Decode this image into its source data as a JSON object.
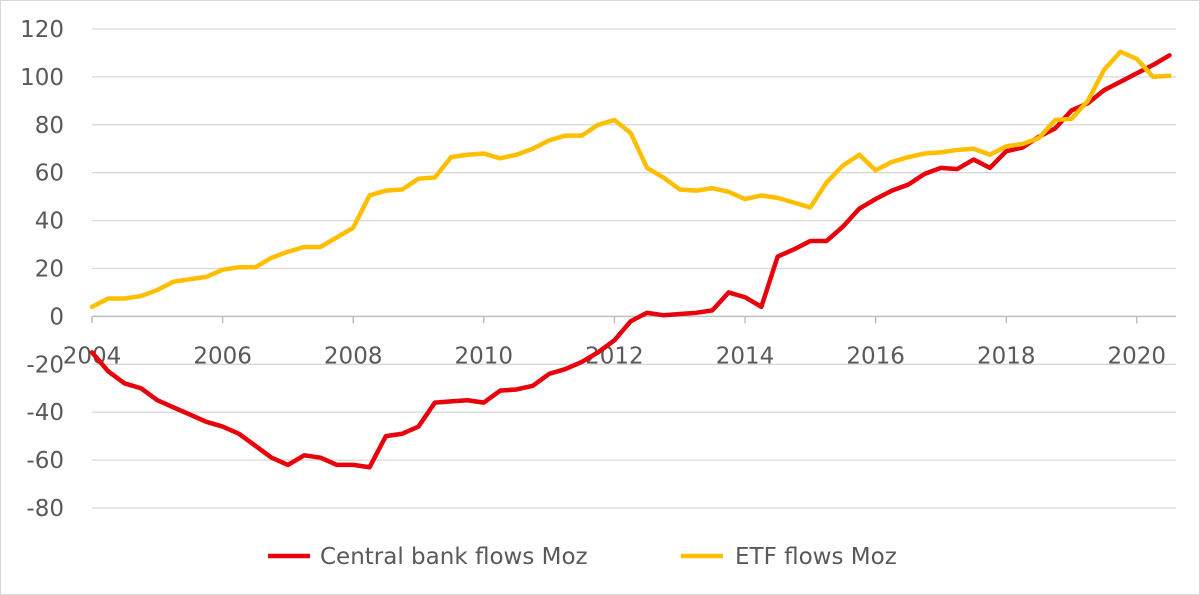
{
  "chart_data": {
    "type": "line",
    "title": "",
    "xlabel": "",
    "ylabel": "",
    "xlim": [
      2004,
      2020.6
    ],
    "ylim": [
      -80,
      120
    ],
    "y_ticks": [
      "-80",
      "-60",
      "-40",
      "-20",
      "0",
      "20",
      "40",
      "60",
      "80",
      "100",
      "120"
    ],
    "x_ticks": [
      "2004",
      "2006",
      "2008",
      "2010",
      "2012",
      "2014",
      "2016",
      "2018",
      "2020"
    ],
    "grid": "horizontal",
    "legend": "bottom",
    "series": [
      {
        "name": "Central bank flows Moz",
        "color": "#e8000b",
        "points": [
          [
            2004.0,
            -15
          ],
          [
            2004.25,
            -23
          ],
          [
            2004.5,
            -28
          ],
          [
            2004.75,
            -30
          ],
          [
            2005.0,
            -35
          ],
          [
            2005.25,
            -38
          ],
          [
            2005.5,
            -41
          ],
          [
            2005.75,
            -44
          ],
          [
            2006.0,
            -46
          ],
          [
            2006.25,
            -49
          ],
          [
            2006.5,
            -54
          ],
          [
            2006.75,
            -59
          ],
          [
            2007.0,
            -62
          ],
          [
            2007.25,
            -58
          ],
          [
            2007.5,
            -59
          ],
          [
            2007.75,
            -62
          ],
          [
            2008.0,
            -62
          ],
          [
            2008.25,
            -63
          ],
          [
            2008.5,
            -50
          ],
          [
            2008.75,
            -49
          ],
          [
            2009.0,
            -46
          ],
          [
            2009.25,
            -36
          ],
          [
            2009.5,
            -35.5
          ],
          [
            2009.75,
            -35
          ],
          [
            2010.0,
            -36
          ],
          [
            2010.25,
            -31
          ],
          [
            2010.5,
            -30.5
          ],
          [
            2010.75,
            -29
          ],
          [
            2011.0,
            -24
          ],
          [
            2011.25,
            -22
          ],
          [
            2011.5,
            -19
          ],
          [
            2011.75,
            -15
          ],
          [
            2012.0,
            -10
          ],
          [
            2012.25,
            -2
          ],
          [
            2012.5,
            1.5
          ],
          [
            2012.75,
            0.5
          ],
          [
            2013.0,
            1
          ],
          [
            2013.25,
            1.5
          ],
          [
            2013.5,
            2.5
          ],
          [
            2013.75,
            10
          ],
          [
            2014.0,
            8
          ],
          [
            2014.25,
            4
          ],
          [
            2014.5,
            25
          ],
          [
            2014.75,
            28
          ],
          [
            2015.0,
            31.5
          ],
          [
            2015.25,
            31.5
          ],
          [
            2015.5,
            37.5
          ],
          [
            2015.75,
            45
          ],
          [
            2016.0,
            49
          ],
          [
            2016.25,
            52.5
          ],
          [
            2016.5,
            55
          ],
          [
            2016.75,
            59.5
          ],
          [
            2017.0,
            62
          ],
          [
            2017.25,
            61.5
          ],
          [
            2017.5,
            65.5
          ],
          [
            2017.75,
            62
          ],
          [
            2018.0,
            69
          ],
          [
            2018.25,
            70.5
          ],
          [
            2018.5,
            75
          ],
          [
            2018.75,
            78.5
          ],
          [
            2019.0,
            86
          ],
          [
            2019.25,
            89
          ],
          [
            2019.5,
            94.5
          ],
          [
            2019.75,
            98
          ],
          [
            2020.0,
            101.5
          ],
          [
            2020.25,
            105
          ],
          [
            2020.5,
            109
          ]
        ]
      },
      {
        "name": "ETF flows Moz",
        "color": "#ffbf00",
        "points": [
          [
            2004.0,
            4
          ],
          [
            2004.25,
            7.5
          ],
          [
            2004.5,
            7.5
          ],
          [
            2004.75,
            8.5
          ],
          [
            2005.0,
            11
          ],
          [
            2005.25,
            14.5
          ],
          [
            2005.5,
            15.5
          ],
          [
            2005.75,
            16.5
          ],
          [
            2006.0,
            19.5
          ],
          [
            2006.25,
            20.5
          ],
          [
            2006.5,
            20.5
          ],
          [
            2006.75,
            24.5
          ],
          [
            2007.0,
            27
          ],
          [
            2007.25,
            29
          ],
          [
            2007.5,
            29
          ],
          [
            2007.75,
            33
          ],
          [
            2008.0,
            37
          ],
          [
            2008.25,
            50.5
          ],
          [
            2008.5,
            52.5
          ],
          [
            2008.75,
            53
          ],
          [
            2009.0,
            57.5
          ],
          [
            2009.25,
            58
          ],
          [
            2009.5,
            66.5
          ],
          [
            2009.75,
            67.5
          ],
          [
            2010.0,
            68
          ],
          [
            2010.25,
            66
          ],
          [
            2010.5,
            67.5
          ],
          [
            2010.75,
            70
          ],
          [
            2011.0,
            73.5
          ],
          [
            2011.25,
            75.5
          ],
          [
            2011.5,
            75.5
          ],
          [
            2011.75,
            80
          ],
          [
            2012.0,
            82
          ],
          [
            2012.25,
            76.5
          ],
          [
            2012.5,
            62
          ],
          [
            2012.75,
            58
          ],
          [
            2013.0,
            53
          ],
          [
            2013.25,
            52.5
          ],
          [
            2013.5,
            53.5
          ],
          [
            2013.75,
            52
          ],
          [
            2014.0,
            49
          ],
          [
            2014.25,
            50.5
          ],
          [
            2014.5,
            49.5
          ],
          [
            2014.75,
            47.5
          ],
          [
            2015.0,
            45.5
          ],
          [
            2015.25,
            56
          ],
          [
            2015.5,
            63
          ],
          [
            2015.75,
            67.5
          ],
          [
            2016.0,
            61
          ],
          [
            2016.25,
            64.5
          ],
          [
            2016.5,
            66.5
          ],
          [
            2016.75,
            68
          ],
          [
            2017.0,
            68.5
          ],
          [
            2017.25,
            69.5
          ],
          [
            2017.5,
            70
          ],
          [
            2017.75,
            67.5
          ],
          [
            2018.0,
            71
          ],
          [
            2018.25,
            72
          ],
          [
            2018.5,
            74.5
          ],
          [
            2018.75,
            82
          ],
          [
            2019.0,
            82.5
          ],
          [
            2019.25,
            90
          ],
          [
            2019.5,
            103
          ],
          [
            2019.75,
            110.5
          ],
          [
            2020.0,
            107.5
          ],
          [
            2020.25,
            100
          ],
          [
            2020.5,
            100.5
          ]
        ]
      }
    ]
  }
}
